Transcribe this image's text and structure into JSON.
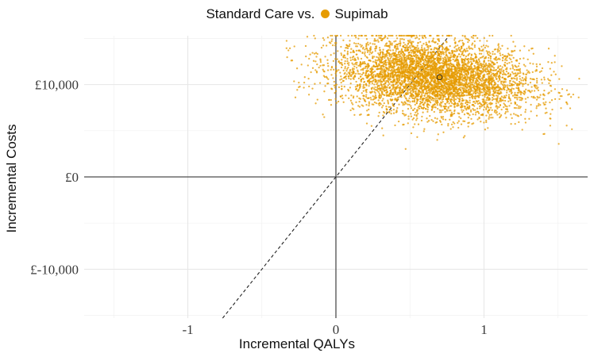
{
  "chart_data": {
    "type": "scatter",
    "title": "",
    "legend": {
      "title": "Standard Care vs.",
      "placement": "top",
      "entries": [
        {
          "name": "Supimab",
          "color": "#E69B00"
        }
      ]
    },
    "xlabel": "Incremental QALYs",
    "ylabel": "Incremental Costs",
    "xlim": [
      -1.7,
      1.7
    ],
    "ylim": [
      -15300,
      15300
    ],
    "xticks": [
      -1,
      0,
      1
    ],
    "xtick_labels": [
      "-1",
      "0",
      "1"
    ],
    "yticks": [
      -10000,
      0,
      10000
    ],
    "ytick_labels": [
      "£-10,000",
      "£0",
      "£10,000"
    ],
    "grid": true,
    "series": [
      {
        "name": "Supimab",
        "color": "#E69B00",
        "n_points": 5000,
        "mean": {
          "x": 0.7,
          "y": 10800
        },
        "x_range": [
          -0.4,
          1.7
        ],
        "y_range": [
          -500,
          15300
        ]
      }
    ],
    "reference_line": {
      "style": "dashed",
      "slope": 20000,
      "intercept": 0
    }
  }
}
